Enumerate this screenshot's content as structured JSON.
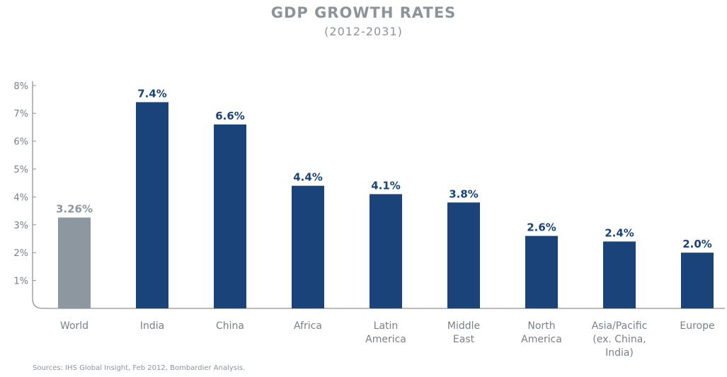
{
  "chart_data": {
    "type": "bar",
    "title": "GDP GROWTH RATES",
    "subtitle": "(2012-2031)",
    "categories": [
      [
        "World"
      ],
      [
        "India"
      ],
      [
        "China"
      ],
      [
        "Africa"
      ],
      [
        "Latin",
        "America"
      ],
      [
        "Middle",
        "East"
      ],
      [
        "North",
        "America"
      ],
      [
        "Asia/Pacific",
        "(ex. China,",
        "India)"
      ],
      [
        "Europe"
      ]
    ],
    "values": [
      3.26,
      7.4,
      6.6,
      4.4,
      4.1,
      3.8,
      2.6,
      2.4,
      2.0
    ],
    "value_labels": [
      "3.26%",
      "7.4%",
      "6.6%",
      "4.4%",
      "4.1%",
      "3.8%",
      "2.6%",
      "2.4%",
      "2.0%"
    ],
    "yticks": [
      "1%",
      "2%",
      "3%",
      "4%",
      "5%",
      "6%",
      "7%",
      "8%"
    ],
    "ylim": [
      0,
      8
    ],
    "grid": false,
    "colors": {
      "highlight": "#8d979f",
      "bar": "#1a4479",
      "highlight_label": "#8d979f",
      "bar_label": "#1a4479",
      "axis": "#8c949b"
    },
    "source": "Sources: IHS Global Insight, Feb 2012, Bombardier Analysis."
  }
}
